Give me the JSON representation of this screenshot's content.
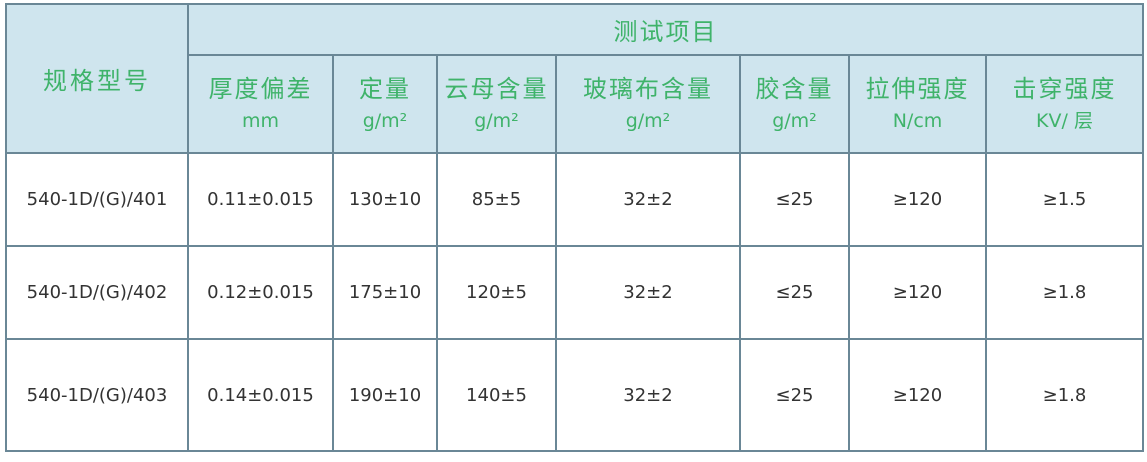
{
  "header": {
    "spec_label": "规格型号",
    "group_label": "测试项目",
    "columns": [
      {
        "name": "厚度偏差",
        "unit": "mm"
      },
      {
        "name": "定量",
        "unit": "g/m²"
      },
      {
        "name": "云母含量",
        "unit": "g/m²"
      },
      {
        "name": "玻璃布含量",
        "unit": "g/m²"
      },
      {
        "name": "胶含量",
        "unit": "g/m²"
      },
      {
        "name": "拉伸强度",
        "unit": "N/cm"
      },
      {
        "name": "击穿强度",
        "unit": "KV/ 层"
      }
    ]
  },
  "rows": [
    [
      "540-1D/(G)/401",
      "0.11±0.015",
      "130±10",
      "85±5",
      "32±2",
      "≤25",
      "≥120",
      "≥1.5"
    ],
    [
      "540-1D/(G)/402",
      "0.12±0.015",
      "175±10",
      "120±5",
      "32±2",
      "≤25",
      "≥120",
      "≥1.8"
    ],
    [
      "540-1D/(G)/403",
      "0.14±0.015",
      "190±10",
      "140±5",
      "32±2",
      "≤25",
      "≥120",
      "≥1.8"
    ]
  ],
  "colors": {
    "header_bg": "#cfe5ee",
    "header_text": "#3fb36a",
    "border": "#6a8796"
  }
}
